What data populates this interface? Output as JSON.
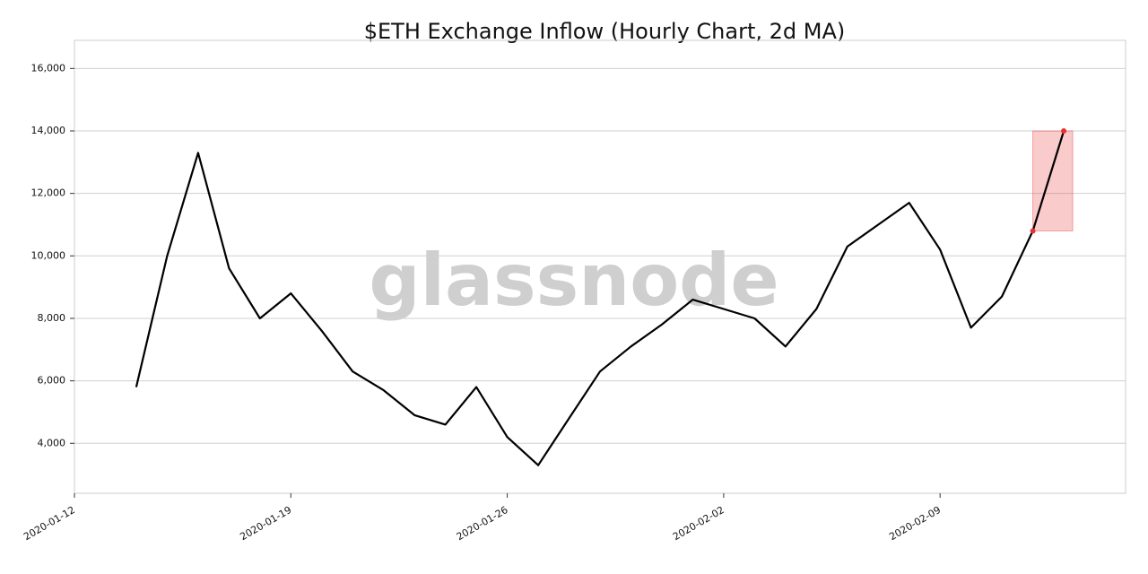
{
  "chart_data": {
    "type": "line",
    "title": "$ETH Exchange Inflow (Hourly Chart, 2d MA)",
    "watermark": "glassnode",
    "x": [
      "2020-01-14",
      "2020-01-15",
      "2020-01-16",
      "2020-01-17",
      "2020-01-18",
      "2020-01-19",
      "2020-01-20",
      "2020-01-21",
      "2020-01-22",
      "2020-01-23",
      "2020-01-24",
      "2020-01-25",
      "2020-01-26",
      "2020-01-27",
      "2020-01-28",
      "2020-01-29",
      "2020-01-30",
      "2020-01-31",
      "2020-02-01",
      "2020-02-02",
      "2020-02-03",
      "2020-02-04",
      "2020-02-05",
      "2020-02-06",
      "2020-02-07",
      "2020-02-08",
      "2020-02-09",
      "2020-02-10",
      "2020-02-11",
      "2020-02-12",
      "2020-02-13"
    ],
    "values": [
      5800,
      10000,
      13300,
      9600,
      8000,
      8800,
      7600,
      6300,
      5700,
      4900,
      4600,
      5800,
      4200,
      3300,
      4800,
      6300,
      7100,
      7800,
      8600,
      8300,
      8000,
      7100,
      8300,
      10300,
      11000,
      11700,
      10200,
      7700,
      8700,
      10800,
      14000
    ],
    "color": "#000000",
    "highlight_color": "#e83030",
    "xlim": [
      "2020-01-12",
      "2020-02-15"
    ],
    "xticks": [
      "2020-01-12",
      "2020-01-19",
      "2020-01-26",
      "2020-02-02",
      "2020-02-09"
    ],
    "ylim": [
      2400,
      16900
    ],
    "yticks": [
      {
        "value": 4000,
        "label": "4,000"
      },
      {
        "value": 6000,
        "label": "6,000"
      },
      {
        "value": 8000,
        "label": "8,000"
      },
      {
        "value": 10000,
        "label": "10,000"
      },
      {
        "value": 12000,
        "label": "12,000"
      },
      {
        "value": 14000,
        "label": "14,000"
      },
      {
        "value": 16000,
        "label": "16,000"
      }
    ],
    "grid": true
  }
}
